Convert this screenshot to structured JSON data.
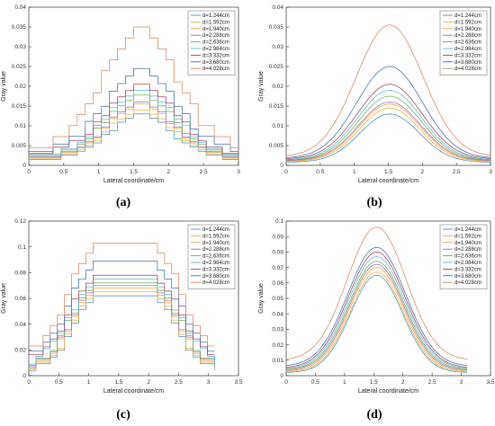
{
  "legend_labels": [
    "d=1.244cm",
    "d=1.592cm",
    "d=1.940cm",
    "d=2.288cm",
    "d=2.636cm",
    "d=2.984cm",
    "d=3.332cm",
    "d=3.680cm",
    "d=4.028cm"
  ],
  "series_colors": [
    "#4b8fbf",
    "#e8b03b",
    "#f2a040",
    "#9a6db0",
    "#6aae4e",
    "#54b8d6",
    "#a33f5a",
    "#3e6fa8",
    "#d9855a"
  ],
  "captions": {
    "a": "(a)",
    "b": "(b)",
    "c": "(c)",
    "d": "(d)"
  },
  "chart_data": [
    {
      "type": "line",
      "style": "stepped",
      "xlabel": "Lateral coordinate/cm",
      "ylabel": "Gray value",
      "xlim": [
        0,
        3
      ],
      "ylim": [
        0,
        0.04
      ],
      "xticks": [
        "0",
        "0.5",
        "1",
        "1.5",
        "2",
        "2.5",
        "3"
      ],
      "yticks": [
        "0",
        "0.005",
        "0.01",
        "0.015",
        "0.02",
        "0.025",
        "0.03",
        "0.035",
        "0.04"
      ],
      "x_range": [
        0,
        3
      ],
      "center": 1.55,
      "width": 0.72,
      "peaks": [
        0.013,
        0.014,
        0.0155,
        0.016,
        0.0178,
        0.019,
        0.0205,
        0.0245,
        0.035
      ],
      "edges": [
        0.0015,
        0.0018,
        0.002,
        0.0022,
        0.0025,
        0.0028,
        0.003,
        0.0035,
        0.0045
      ],
      "legend": "top-right"
    },
    {
      "type": "line",
      "style": "smooth",
      "xlabel": "Lateral coordinate/cm",
      "ylabel": "Gray value",
      "xlim": [
        0,
        3
      ],
      "ylim": [
        0,
        0.04
      ],
      "xticks": [
        "0",
        "0.5",
        "1",
        "1.5",
        "2",
        "2.5",
        "3"
      ],
      "yticks": [
        "0",
        "0.005",
        "0.01",
        "0.015",
        "0.02",
        "0.025",
        "0.03",
        "0.035",
        "0.04"
      ],
      "x_range": [
        0,
        3
      ],
      "center": 1.52,
      "width": 0.7,
      "peaks": [
        0.013,
        0.0145,
        0.0155,
        0.016,
        0.0175,
        0.019,
        0.0205,
        0.025,
        0.0355
      ],
      "edges": [
        0.0008,
        0.001,
        0.0011,
        0.0012,
        0.0013,
        0.0014,
        0.0016,
        0.0018,
        0.0022
      ],
      "legend": "top-right"
    },
    {
      "type": "line",
      "style": "stepped",
      "xlabel": "Lateral coordinate/cm",
      "ylabel": "Gray value",
      "xlim": [
        0,
        3.5
      ],
      "ylim": [
        0,
        0.12
      ],
      "xticks": [
        "0",
        "0.5",
        "1",
        "1.5",
        "2",
        "2.5",
        "3",
        "3.5"
      ],
      "yticks": [
        "0",
        "0.02",
        "0.04",
        "0.06",
        "0.08",
        "0.1",
        "0.12"
      ],
      "x_range": [
        0,
        3.1
      ],
      "center": 1.55,
      "width": 0.65,
      "flat": 0.45,
      "peaks": [
        0.062,
        0.065,
        0.068,
        0.07,
        0.072,
        0.075,
        0.078,
        0.089,
        0.103
      ],
      "edges": [
        0.004,
        0.005,
        0.006,
        0.007,
        0.008,
        0.009,
        0.01,
        0.012,
        0.015
      ],
      "legend": "top-right"
    },
    {
      "type": "line",
      "style": "smooth",
      "xlabel": "Lateral coordinate/cm",
      "ylabel": "Gray value",
      "xlim": [
        0,
        3.5
      ],
      "ylim": [
        0,
        0.1
      ],
      "xticks": [
        "0",
        "0.5",
        "1",
        "1.5",
        "2",
        "2.5",
        "3",
        "3.5"
      ],
      "yticks": [
        "0",
        "0.01",
        "0.02",
        "0.03",
        "0.04",
        "0.05",
        "0.06",
        "0.07",
        "0.08",
        "0.09",
        "0.1"
      ],
      "x_range": [
        0,
        3.1
      ],
      "center": 1.55,
      "width": 0.72,
      "peaks": [
        0.065,
        0.067,
        0.07,
        0.072,
        0.074,
        0.077,
        0.08,
        0.083,
        0.096
      ],
      "edges": [
        0.002,
        0.0025,
        0.003,
        0.0035,
        0.004,
        0.0045,
        0.005,
        0.006,
        0.01
      ],
      "legend": "top-right"
    }
  ]
}
